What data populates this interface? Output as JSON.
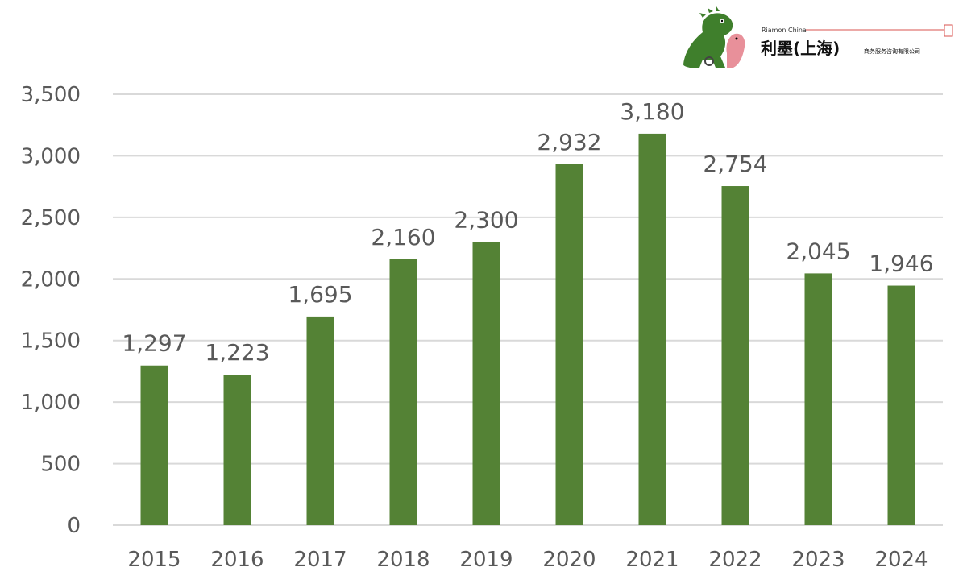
{
  "logo": {
    "brand_en": "Riamon China",
    "brand_cn": "利墨(上海)",
    "company_suffix": "商务服务咨询有限公司",
    "colors": {
      "dino_green": "#3f7f2c",
      "dino_pink": "#e8909a",
      "rule_red": "#d9534f"
    }
  },
  "chart_data": {
    "type": "bar",
    "categories": [
      "2015",
      "2016",
      "2017",
      "2018",
      "2019",
      "2020",
      "2021",
      "2022",
      "2023",
      "2024"
    ],
    "values": [
      1297,
      1223,
      1695,
      2160,
      2300,
      2932,
      3180,
      2754,
      2045,
      1946
    ],
    "value_labels": [
      "1,297",
      "1,223",
      "1,695",
      "2,160",
      "2,300",
      "2,932",
      "3,180",
      "2,754",
      "2,045",
      "1,946"
    ],
    "y_ticks": [
      0,
      500,
      1000,
      1500,
      2000,
      2500,
      3000,
      3500
    ],
    "y_tick_labels": [
      "0",
      "500",
      "1,000",
      "1,500",
      "2,000",
      "2,500",
      "3,000",
      "3,500"
    ],
    "ylim": [
      0,
      3500
    ],
    "title": "",
    "xlabel": "",
    "ylabel": "",
    "grid": true,
    "legend": "none",
    "bar_color": "#548235"
  }
}
